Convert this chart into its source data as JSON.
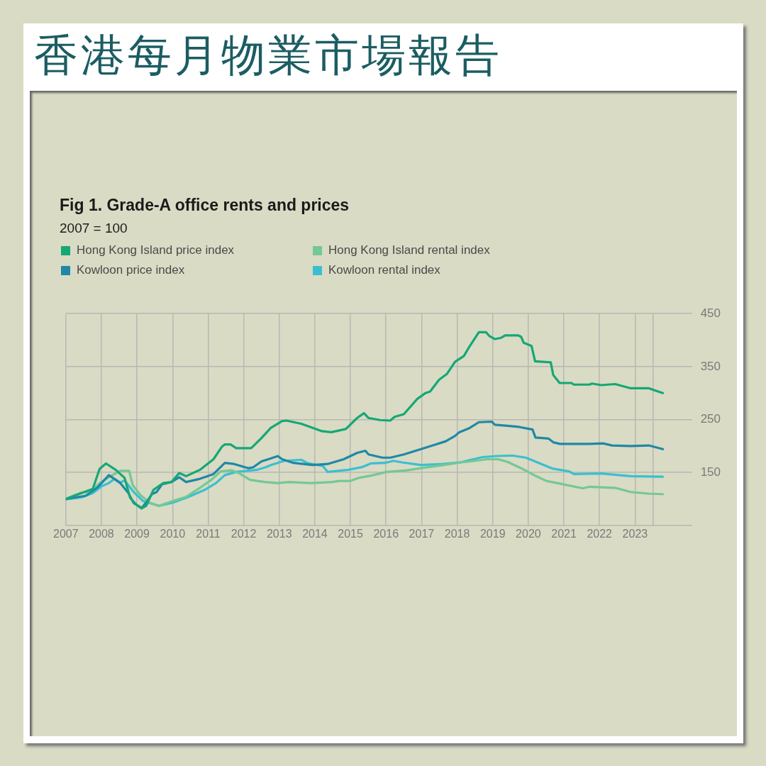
{
  "chart_data": {
    "type": "line",
    "title": "香港每月物業市場報告",
    "subtitle": "Fig 1. Grade-A office rents and prices",
    "annotations": [
      "2007 = 100"
    ],
    "legend": "top left",
    "grid": true,
    "marker": "none",
    "line_style": "solid",
    "xlim": [
      2007,
      2024.6
    ],
    "xticks": [
      2007,
      2008,
      2009,
      2010,
      2011,
      2012,
      2013,
      2014,
      2015,
      2016,
      2017,
      2018,
      2019,
      2020,
      2021,
      2022,
      2023,
      {
        "value": 2023.5,
        "label": null
      }
    ],
    "ylim": [
      50,
      450
    ],
    "yticks": [
      {
        "value": 50,
        "label": null
      },
      150,
      250,
      350,
      450
    ],
    "series": [
      {
        "name": "Hong Kong Island price index",
        "color": "#14a874",
        "x": [
          2007,
          2007.76,
          2007.95,
          2008.13,
          2008.4,
          2008.65,
          2008.81,
          2008.97,
          2009.13,
          2009.26,
          2009.46,
          2009.74,
          2009.97,
          2010.19,
          2010.38,
          2010.77,
          2011.15,
          2011.38,
          2011.47,
          2011.63,
          2011.79,
          2012.21,
          2012.5,
          2012.76,
          2013.08,
          2013.2,
          2013.62,
          2014.2,
          2014.46,
          2014.87,
          2015.19,
          2015.38,
          2015.51,
          2015.83,
          2016.12,
          2016.24,
          2016.5,
          2016.88,
          2017.11,
          2017.24,
          2017.49,
          2017.71,
          2017.94,
          2018.19,
          2018.32,
          2018.61,
          2018.81,
          2018.9,
          2019.06,
          2019.22,
          2019.35,
          2019.71,
          2019.8,
          2019.87,
          2020.09,
          2020.19,
          2020.63,
          2020.7,
          2020.88,
          2021.21,
          2021.28,
          2021.72,
          2021.79,
          2022.05,
          2022.44,
          2022.88,
          2023.39,
          2023.78
        ],
        "values": [
          100,
          119,
          157,
          167,
          155,
          140,
          102,
          90,
          82,
          87,
          117,
          130,
          132,
          149,
          143,
          155,
          175,
          198,
          203,
          203,
          196,
          196,
          215,
          234,
          247,
          248,
          242,
          228,
          226,
          232,
          253,
          262,
          253,
          249,
          248,
          255,
          260,
          289,
          300,
          303,
          325,
          336,
          359,
          370,
          385,
          415,
          415,
          408,
          402,
          404,
          409,
          409,
          406,
          395,
          389,
          360,
          358,
          334,
          319,
          319,
          316,
          316,
          318,
          315,
          317,
          309,
          309,
          300
        ]
      },
      {
        "name": "Kowloon price index",
        "color": "#1f88a6",
        "x": [
          2007,
          2007.56,
          2007.88,
          2008.21,
          2008.53,
          2008.76,
          2008.91,
          2009.13,
          2009.29,
          2009.42,
          2009.55,
          2009.71,
          2009.97,
          2010.19,
          2010.38,
          2010.77,
          2011.15,
          2011.47,
          2011.73,
          2012.14,
          2012.27,
          2012.5,
          2012.69,
          2012.96,
          2013.08,
          2013.4,
          2013.94,
          2014.36,
          2014.81,
          2015.19,
          2015.42,
          2015.51,
          2015.9,
          2016.12,
          2016.5,
          2016.98,
          2017.36,
          2017.68,
          2017.94,
          2018.06,
          2018.35,
          2018.61,
          2018.97,
          2019.06,
          2019.42,
          2019.74,
          2020.12,
          2020.2,
          2020.57,
          2020.7,
          2020.89,
          2021.72,
          2022.1,
          2022.36,
          2022.88,
          2023.39,
          2023.78
        ],
        "values": [
          100,
          106,
          121,
          145,
          130,
          111,
          92,
          83,
          96,
          109,
          113,
          128,
          132,
          141,
          132,
          138,
          147,
          168,
          166,
          158,
          160,
          171,
          175,
          181,
          175,
          168,
          164,
          166,
          175,
          187,
          191,
          184,
          178,
          178,
          184,
          194,
          202,
          209,
          219,
          226,
          234,
          245,
          246,
          240,
          238,
          236,
          231,
          216,
          214,
          207,
          204,
          204,
          205,
          201,
          200,
          201,
          194
        ]
      },
      {
        "name": "Hong Kong Island rental index",
        "color": "#74c894",
        "x": [
          2007,
          2007.24,
          2007.44,
          2007.69,
          2007.95,
          2008.21,
          2008.53,
          2008.78,
          2008.88,
          2009.1,
          2009.36,
          2009.62,
          2010,
          2010.38,
          2010.77,
          2011.09,
          2011.35,
          2011.67,
          2011.86,
          2012.18,
          2012.6,
          2012.95,
          2013.27,
          2013.91,
          2014.48,
          2014.68,
          2015,
          2015.25,
          2015.57,
          2016.02,
          2016.59,
          2016.98,
          2017.62,
          2018.1,
          2018.51,
          2018.83,
          2019.15,
          2019.42,
          2019.8,
          2020.19,
          2020.51,
          2020.89,
          2021.53,
          2021.72,
          2022.44,
          2022.88,
          2023.39,
          2023.78
        ],
        "values": [
          100,
          107,
          112,
          113,
          130,
          141,
          153,
          153,
          126,
          107,
          93,
          87,
          96,
          104,
          121,
          136,
          152,
          154,
          149,
          136,
          132,
          130,
          132,
          130,
          132,
          134,
          134,
          140,
          144,
          151,
          154,
          158,
          164,
          169,
          172,
          175,
          175,
          170,
          158,
          144,
          134,
          129,
          120,
          123,
          121,
          113,
          110,
          109
        ]
      },
      {
        "name": "Kowloon rental index",
        "color": "#3bbfd0",
        "x": [
          2007,
          2007.44,
          2007.76,
          2008.01,
          2008.21,
          2008.37,
          2008.53,
          2008.65,
          2008.91,
          2009.17,
          2009.62,
          2010,
          2010.38,
          2010.9,
          2011.22,
          2011.47,
          2011.79,
          2012.37,
          2012.62,
          2012.76,
          2013.14,
          2013.62,
          2013.78,
          2014.23,
          2014.36,
          2014.94,
          2015.32,
          2015.57,
          2015.96,
          2016.21,
          2016.46,
          2016.98,
          2017.62,
          2018.1,
          2018.26,
          2018.71,
          2019.1,
          2019.55,
          2019.93,
          2020.44,
          2020.7,
          2021.15,
          2021.28,
          2022.05,
          2022.88,
          2023.78
        ],
        "values": [
          99,
          103,
          111,
          124,
          130,
          138,
          131,
          135,
          113,
          96,
          87,
          93,
          102,
          117,
          130,
          145,
          151,
          155,
          160,
          164,
          172,
          174,
          168,
          162,
          151,
          155,
          160,
          167,
          168,
          172,
          169,
          164,
          166,
          169,
          172,
          179,
          181,
          182,
          178,
          164,
          157,
          152,
          147,
          148,
          143,
          142
        ]
      }
    ]
  }
}
